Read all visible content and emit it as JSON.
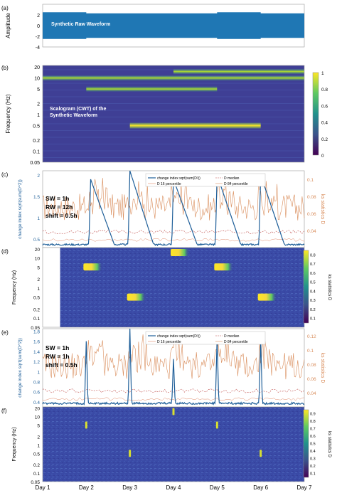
{
  "colors": {
    "wave": "#1f77b4",
    "change": "#1f5f99",
    "ks": "#d98c5a",
    "viridis_dark": "#440154",
    "viridis_mid": "#21918c",
    "viridis_light": "#fde725",
    "bg_scalogram": "#3b4ba8"
  },
  "x_days": [
    "Day 1",
    "Day 2",
    "Day 3",
    "Day 4",
    "Day 5",
    "Day 6",
    "Day 7"
  ],
  "panels": {
    "a": {
      "label": "(a)",
      "ylabel": "Amplitude",
      "annotation": "Synthetic Raw Waveform",
      "yticks": [
        "2",
        "0",
        "-2",
        "-4"
      ]
    },
    "b": {
      "label": "(b)",
      "ylabel": "Frequency (Hz)",
      "annotation_line1": "Scalogram (CWT) of the",
      "annotation_line2": "Synthetic Waveform",
      "yticks": [
        "20",
        "10",
        "5",
        "2",
        "1",
        "0.5",
        "0.2",
        "0.1",
        "0.05"
      ],
      "cbar_ticks": [
        "1",
        "0.8",
        "0.6",
        "0.4",
        "0.2",
        "0"
      ]
    },
    "c": {
      "label": "(c)",
      "ylabel_left": "change index sqrt(sum(D^2))",
      "ylabel_right": "ks statistics D",
      "yticks_left": [
        "2",
        "1.5",
        "1",
        "0.5"
      ],
      "yticks_right": [
        "0.1",
        "0.08",
        "0.06",
        "0.04"
      ],
      "params": [
        "SW = 1h",
        "RW = 12h",
        "shift = 0.5h"
      ],
      "legend": [
        "change index sqrt(sum(D²))",
        "D median",
        "D 16 percentile",
        "D 84 percentile"
      ]
    },
    "d": {
      "label": "(d)",
      "ylabel": "Frequency (Hz)",
      "right_label": "ks statistics D",
      "yticks": [
        "20",
        "10",
        "5",
        "2",
        "1",
        "0.5",
        "0.2",
        "0.1",
        "0.05"
      ],
      "cbar_ticks": [
        "0.8",
        "0.7",
        "0.6",
        "0.5",
        "0.4",
        "0.3",
        "0.2",
        "0.1"
      ]
    },
    "e": {
      "label": "(e)",
      "ylabel_left": "change index sqrt(sum(D^2))",
      "ylabel_right": "ks statistics D",
      "yticks_left": [
        "1.8",
        "1.6",
        "1.4",
        "1.2",
        "1",
        "0.8",
        "0.6",
        "0.4"
      ],
      "yticks_right": [
        "0.12",
        "0.1",
        "0.08",
        "0.06",
        "0.04"
      ],
      "params": [
        "SW = 1h",
        "RW = 1h",
        "shift = 0.5h"
      ],
      "legend": [
        "change index sqrt(sum(D²))",
        "D median",
        "D 16 percentile",
        "D 84 percentile"
      ]
    },
    "f": {
      "label": "(f)",
      "ylabel": "Frequency (Hz)",
      "right_label": "ks statistics D",
      "yticks": [
        "20",
        "10",
        "5",
        "2",
        "1",
        "0.5",
        "0.2",
        "0.1",
        "0.05"
      ],
      "cbar_ticks": [
        "0.9",
        "0.8",
        "0.7",
        "0.6",
        "0.5",
        "0.4",
        "0.3",
        "0.2",
        "0.1"
      ]
    }
  },
  "chart_data": [
    {
      "type": "line",
      "panel": "a",
      "ylabel": "Amplitude",
      "ylim": [
        -4,
        4
      ],
      "x": [
        "Day 1",
        "Day 2",
        "Day 3",
        "Day 4",
        "Day 5",
        "Day 6",
        "Day 7"
      ],
      "envelope_upper": [
        2.5,
        2.3,
        2.3,
        2.3,
        2.5,
        2.3,
        2.5
      ],
      "envelope_lower": [
        -2.5,
        -2.3,
        -2.3,
        -2.3,
        -2.5,
        -2.3,
        -2.5
      ]
    },
    {
      "type": "heatmap",
      "panel": "b",
      "ylabel": "Frequency (Hz)",
      "clim": [
        0,
        1
      ],
      "bands": [
        {
          "freq_hz": 10,
          "start_day": 1,
          "end_day": 7,
          "value": 0.55
        },
        {
          "freq_hz": 15,
          "start_day": 4,
          "end_day": 7,
          "value": 0.5
        },
        {
          "freq_hz": 5,
          "start_day": 2,
          "end_day": 5,
          "value": 0.7
        },
        {
          "freq_hz": 0.5,
          "start_day": 3,
          "end_day": 6,
          "value": 0.95
        }
      ]
    },
    {
      "type": "line",
      "panel": "c",
      "ylim_left": [
        0.3,
        2.1
      ],
      "ylim_right": [
        0.02,
        0.11
      ],
      "change_peaks": [
        {
          "day": 2.1,
          "value": 1.9
        },
        {
          "day": 3.0,
          "value": 2.1
        },
        {
          "day": 4.0,
          "value": 1.9
        },
        {
          "day": 5.0,
          "value": 2.0
        },
        {
          "day": 6.0,
          "value": 2.0
        }
      ],
      "baseline": 0.35
    },
    {
      "type": "heatmap",
      "panel": "d",
      "clim": [
        0.05,
        0.85
      ],
      "blobs": [
        {
          "freq_hz": 5,
          "day": 2.0,
          "value": 0.85
        },
        {
          "freq_hz": 0.5,
          "day": 3.0,
          "value": 0.85
        },
        {
          "freq_hz": 15,
          "day": 4.0,
          "value": 0.8
        },
        {
          "freq_hz": 5,
          "day": 5.0,
          "value": 0.85
        },
        {
          "freq_hz": 0.5,
          "day": 6.0,
          "value": 0.85
        }
      ]
    },
    {
      "type": "line",
      "panel": "e",
      "ylim_left": [
        0.3,
        1.85
      ],
      "ylim_right": [
        0.02,
        0.13
      ],
      "change_peaks": [
        {
          "day": 2.0,
          "value": 1.6
        },
        {
          "day": 3.0,
          "value": 1.85
        },
        {
          "day": 4.0,
          "value": 1.25
        },
        {
          "day": 5.0,
          "value": 1.65
        },
        {
          "day": 6.0,
          "value": 1.6
        }
      ],
      "baseline": 0.35
    },
    {
      "type": "heatmap",
      "panel": "f",
      "clim": [
        0.05,
        0.95
      ],
      "blobs": [
        {
          "freq_hz": 5,
          "day": 2.0,
          "value": 0.9
        },
        {
          "freq_hz": 0.5,
          "day": 3.0,
          "value": 0.9
        },
        {
          "freq_hz": 15,
          "day": 4.0,
          "value": 0.85
        },
        {
          "freq_hz": 5,
          "day": 5.0,
          "value": 0.9
        },
        {
          "freq_hz": 0.5,
          "day": 6.0,
          "value": 0.9
        }
      ]
    }
  ]
}
